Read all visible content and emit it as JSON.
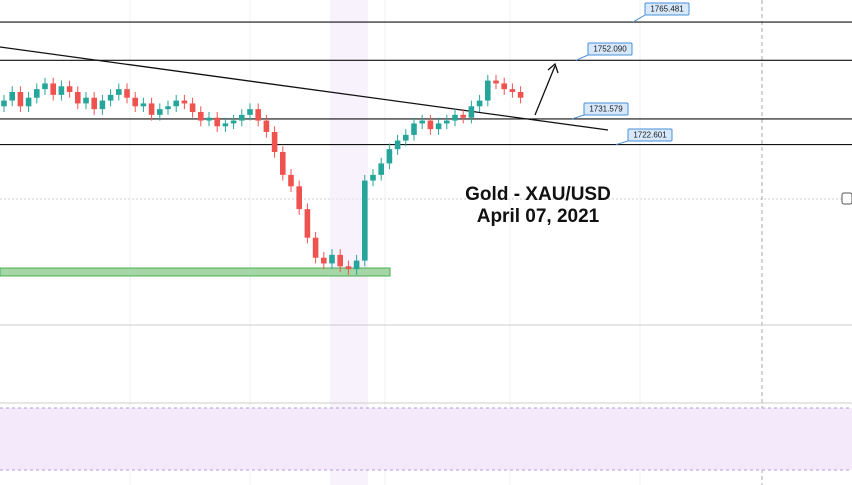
{
  "chart_data": {
    "type": "candlestick",
    "title": "Gold - XAU/USD",
    "subtitle": "April 07, 2021",
    "ylim": [
      1661.2,
      1773.2
    ],
    "up_color": "#26a69a",
    "down_color": "#ef5350",
    "levels": [
      1765.481,
      {
        "value": 1752.09,
        "label": "1752.090"
      },
      1731.579,
      1722.601
    ],
    "open": [
      1736,
      1738,
      1741,
      1736,
      1739,
      1742,
      1744,
      1740,
      1743,
      1741,
      1737,
      1739,
      1735,
      1738,
      1740,
      1742,
      1739,
      1736,
      1737,
      1733,
      1735,
      1736,
      1738,
      1737,
      1734,
      1731,
      1732,
      1729,
      1730,
      1731,
      1733,
      1735,
      1731,
      1727,
      1720,
      1712,
      1708,
      1700,
      1690,
      1683,
      1681,
      1684,
      1680,
      1679,
      1682,
      1710,
      1712,
      1716,
      1721,
      1724,
      1726,
      1730,
      1731,
      1728,
      1730,
      1731,
      1733,
      1732,
      1736,
      1738,
      1745,
      1744,
      1742,
      1741
    ],
    "high": [
      1740,
      1743,
      1743,
      1741,
      1744,
      1746,
      1746,
      1745,
      1745,
      1743,
      1741,
      1741,
      1740,
      1742,
      1744,
      1744,
      1741,
      1739,
      1739,
      1737,
      1738,
      1740,
      1740,
      1739,
      1736,
      1734,
      1734,
      1732,
      1733,
      1735,
      1737,
      1737,
      1733,
      1729,
      1722,
      1714,
      1710,
      1702,
      1692,
      1685,
      1686,
      1686,
      1682,
      1684,
      1712,
      1714,
      1718,
      1723,
      1726,
      1728,
      1732,
      1733,
      1733,
      1732,
      1733,
      1735,
      1735,
      1738,
      1740,
      1747,
      1747,
      1746,
      1744,
      1743
    ],
    "low": [
      1734,
      1736,
      1734,
      1734,
      1737,
      1740,
      1738,
      1738,
      1739,
      1735,
      1735,
      1733,
      1733,
      1736,
      1738,
      1737,
      1734,
      1734,
      1731,
      1731,
      1733,
      1734,
      1735,
      1732,
      1729,
      1729,
      1727,
      1727,
      1728,
      1729,
      1731,
      1729,
      1725,
      1718,
      1710,
      1706,
      1698,
      1688,
      1681,
      1679,
      1679,
      1678,
      1677,
      1677,
      1680,
      1708,
      1710,
      1714,
      1719,
      1722,
      1724,
      1728,
      1726,
      1726,
      1728,
      1729,
      1730,
      1730,
      1734,
      1736,
      1742,
      1740,
      1739,
      1737
    ],
    "close": [
      1738,
      1741,
      1736,
      1739,
      1742,
      1744,
      1740,
      1743,
      1741,
      1737,
      1739,
      1735,
      1738,
      1740,
      1742,
      1739,
      1736,
      1737,
      1733,
      1735,
      1736,
      1738,
      1737,
      1734,
      1731,
      1732,
      1729,
      1730,
      1731,
      1733,
      1735,
      1731,
      1727,
      1720,
      1712,
      1708,
      1700,
      1690,
      1683,
      1681,
      1684,
      1680,
      1679,
      1682,
      1710,
      1712,
      1716,
      1721,
      1724,
      1726,
      1730,
      1731,
      1728,
      1730,
      1731,
      1733,
      1732,
      1736,
      1738,
      1745,
      1744,
      1742,
      1741,
      1739
    ]
  }
}
